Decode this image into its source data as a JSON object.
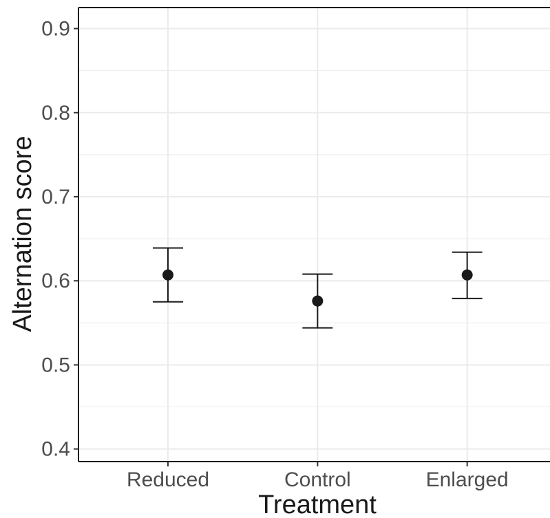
{
  "chart_data": {
    "type": "scatter",
    "title": "",
    "xlabel": "Treatment",
    "ylabel": "Alternation score",
    "categories": [
      "Reduced",
      "Control",
      "Enlarged"
    ],
    "series": [
      {
        "values": [
          0.607,
          0.576,
          0.607
        ],
        "error_low": [
          0.575,
          0.544,
          0.579
        ],
        "error_high": [
          0.639,
          0.608,
          0.634
        ]
      }
    ],
    "yticks": [
      "0.4",
      "0.5",
      "0.6",
      "0.7",
      "0.8",
      "0.9"
    ],
    "ylim": [
      0.385,
      0.925
    ],
    "grid": true,
    "colors": {
      "point": "#1a1a1a",
      "errorbar": "#1a1a1a",
      "grid": "#ebebeb",
      "axis": "#1a1a1a"
    }
  }
}
